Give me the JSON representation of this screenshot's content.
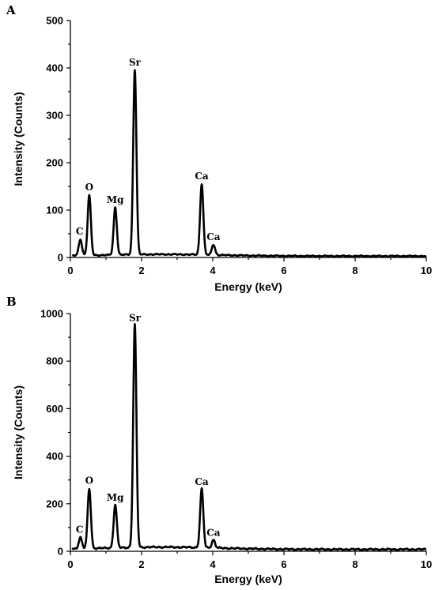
{
  "chart_data": [
    {
      "type": "line",
      "panel": "A",
      "xlabel": "Energy (keV)",
      "ylabel": "Intensity (Counts)",
      "xlim": [
        0,
        10
      ],
      "ylim": [
        0,
        500
      ],
      "xticks": [
        0,
        2,
        4,
        6,
        8,
        10
      ],
      "yticks": [
        0,
        100,
        200,
        300,
        400,
        500
      ],
      "baseline": 3,
      "peaks": [
        {
          "label": "C",
          "energy": 0.28,
          "intensity": 37
        },
        {
          "label": "O",
          "energy": 0.53,
          "intensity": 130
        },
        {
          "label": "Mg",
          "energy": 1.26,
          "intensity": 103
        },
        {
          "label": "Sr",
          "energy": 1.81,
          "intensity": 393
        },
        {
          "label": "Ca",
          "energy": 3.69,
          "intensity": 153
        },
        {
          "label": "Ca",
          "energy": 4.02,
          "intensity": 25
        }
      ]
    },
    {
      "type": "line",
      "panel": "B",
      "xlabel": "Energy (keV)",
      "ylabel": "Intensity (Counts)",
      "xlim": [
        0,
        10
      ],
      "ylim": [
        0,
        1000
      ],
      "xticks": [
        0,
        2,
        4,
        6,
        8,
        10
      ],
      "yticks": [
        0,
        200,
        400,
        600,
        800,
        1000
      ],
      "baseline": 8,
      "peaks": [
        {
          "label": "C",
          "energy": 0.28,
          "intensity": 55
        },
        {
          "label": "O",
          "energy": 0.53,
          "intensity": 260
        },
        {
          "label": "Mg",
          "energy": 1.26,
          "intensity": 190
        },
        {
          "label": "Sr",
          "energy": 1.81,
          "intensity": 945
        },
        {
          "label": "Ca",
          "energy": 3.69,
          "intensity": 255
        },
        {
          "label": "Ca",
          "energy": 4.02,
          "intensity": 42
        }
      ]
    }
  ]
}
